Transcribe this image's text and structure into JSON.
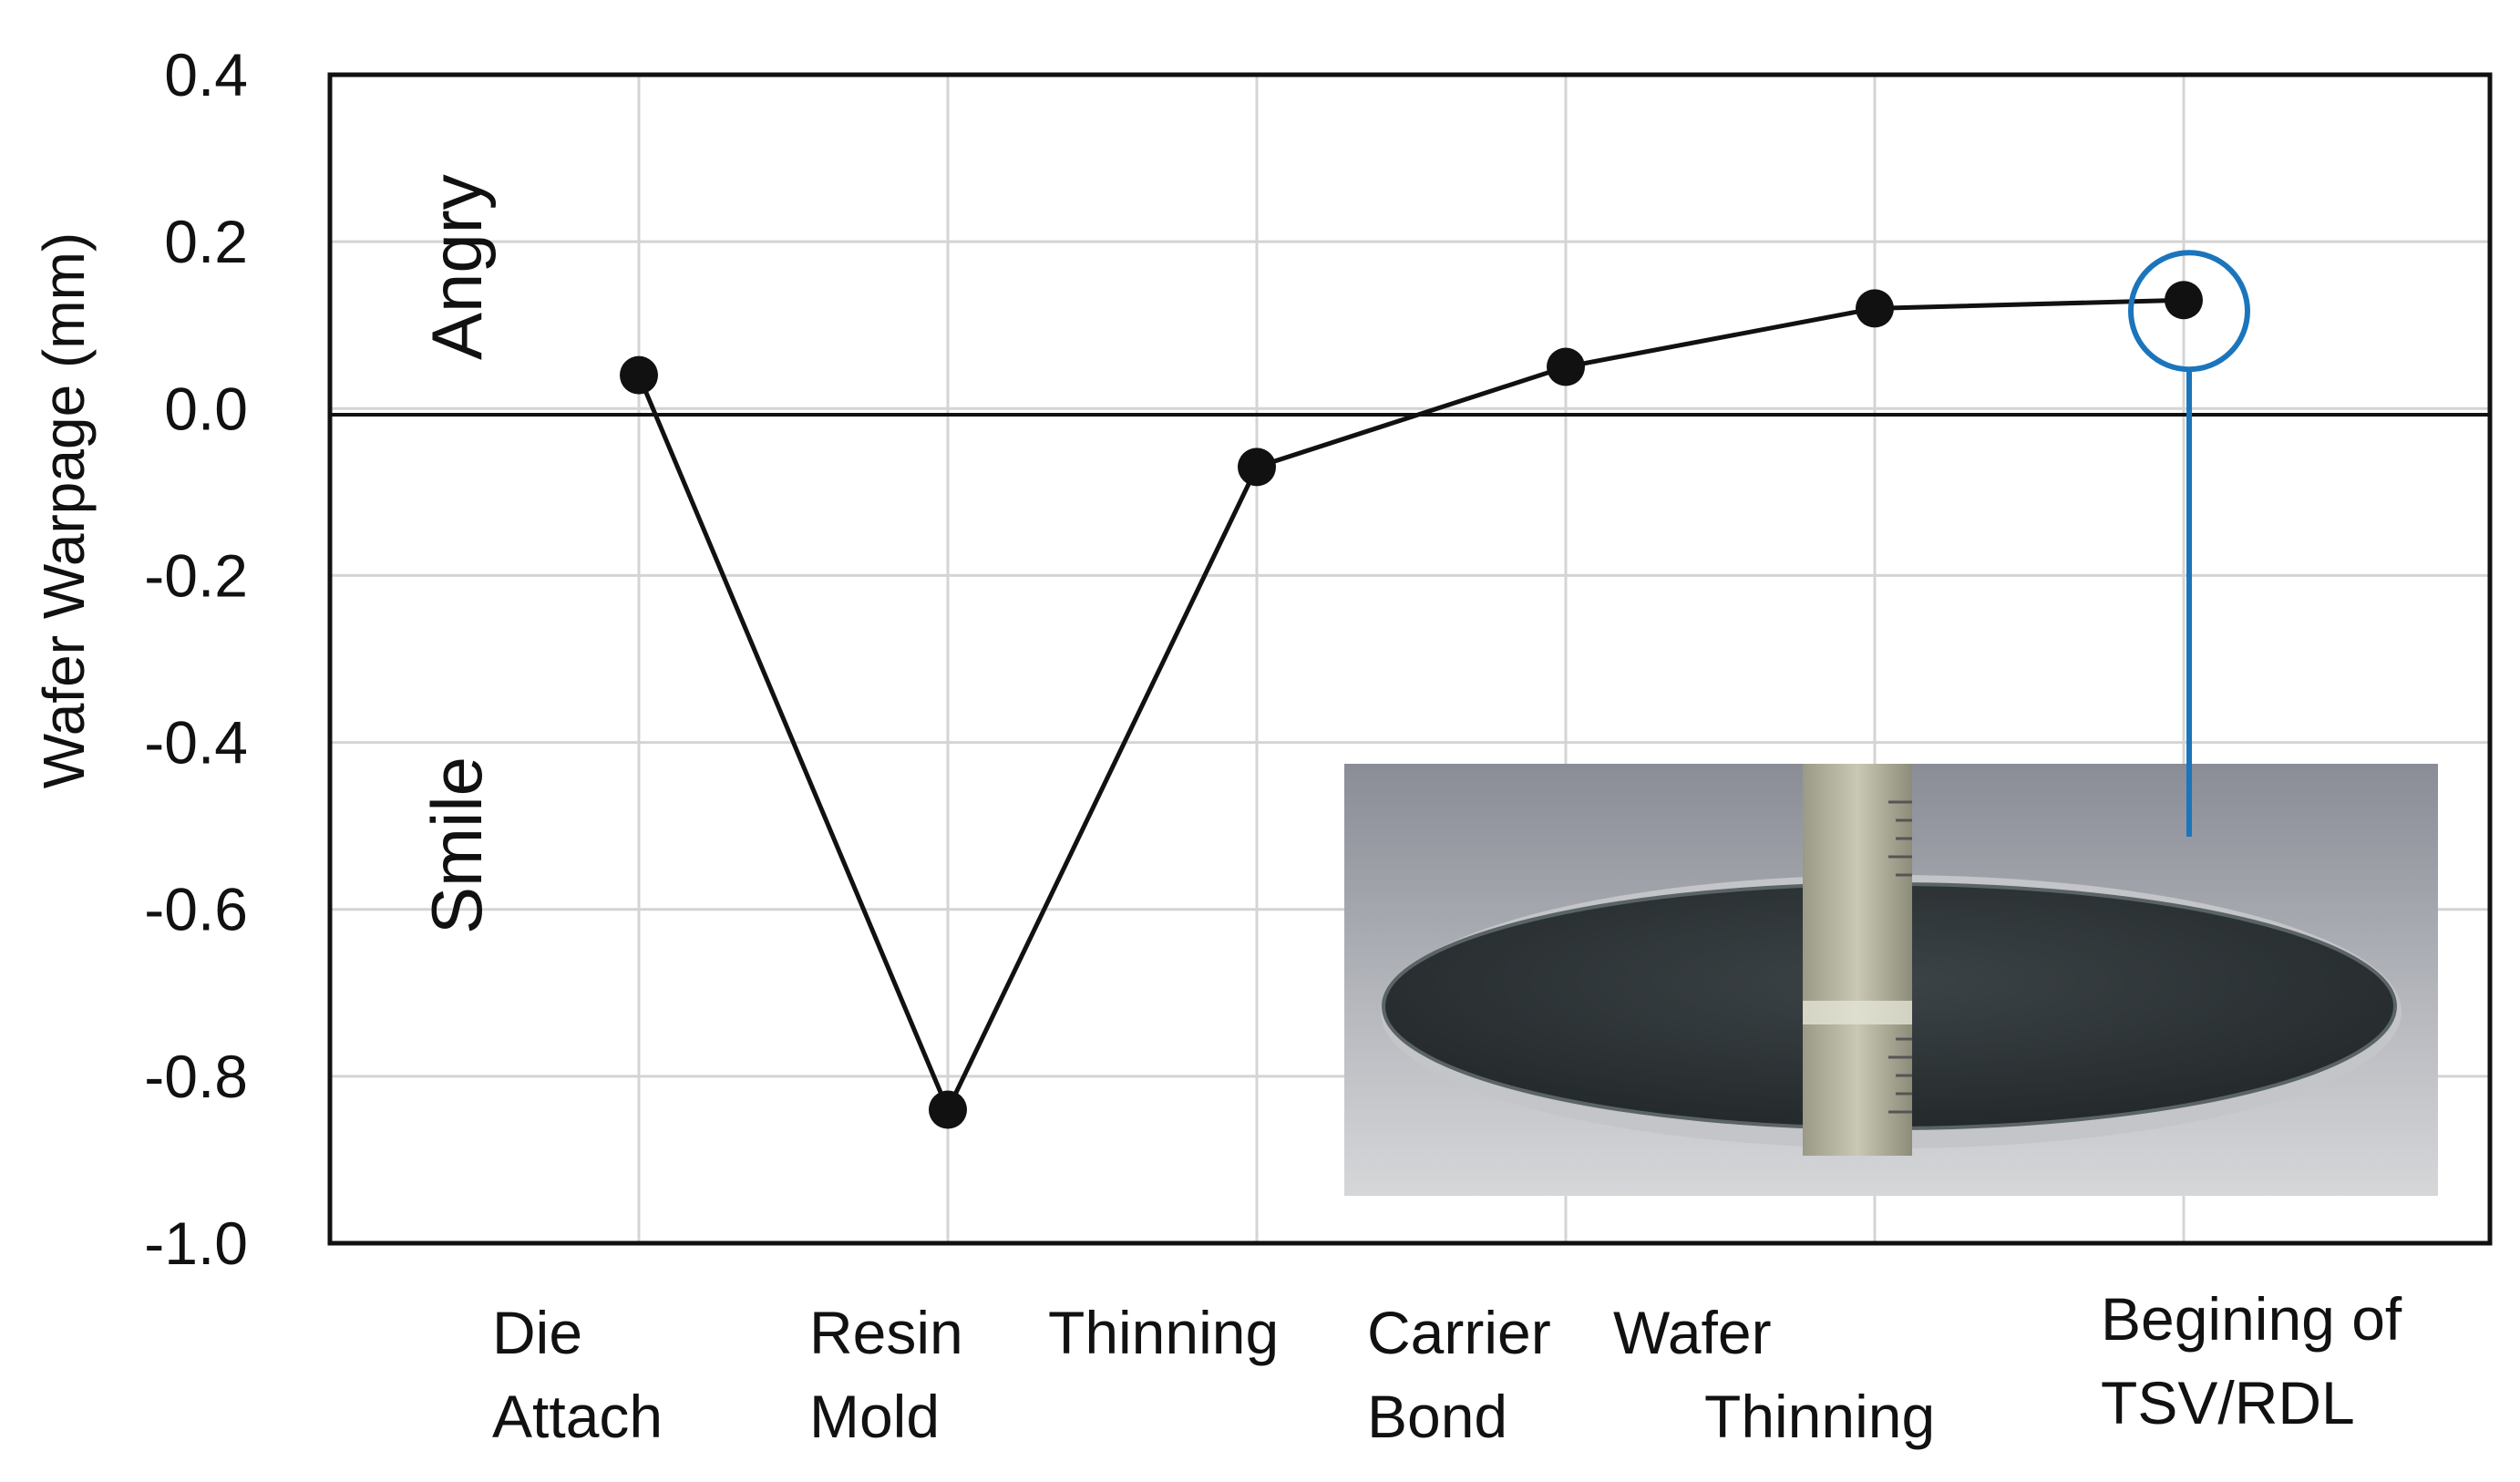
{
  "chart_data": {
    "type": "line",
    "title": "",
    "ylabel": "Wafer Warpage (mm)",
    "xlabel": "",
    "ylim": [
      -1.0,
      0.4
    ],
    "yticks": [
      "0.4",
      "0.2",
      "0.0",
      "-0.2",
      "-0.4",
      "-0.6",
      "-0.8",
      "-1.0"
    ],
    "grid": true,
    "categories": [
      [
        "Die",
        "Attach"
      ],
      [
        "Resin",
        "Mold"
      ],
      [
        "Thinning"
      ],
      [
        "Carrier",
        "Bond"
      ],
      [
        "Wafer",
        "Thinning"
      ],
      [
        "Begining of",
        "TSV/RDL"
      ]
    ],
    "series": [
      {
        "values": [
          0.04,
          -0.84,
          -0.07,
          0.05,
          0.12,
          0.13
        ]
      }
    ],
    "annotations": {
      "upper_region": "Angry",
      "lower_region": "Smile",
      "highlight_point_index": 5,
      "highlight_color": "#1b75bc"
    },
    "inset_photo": "warped wafer with ruler"
  }
}
